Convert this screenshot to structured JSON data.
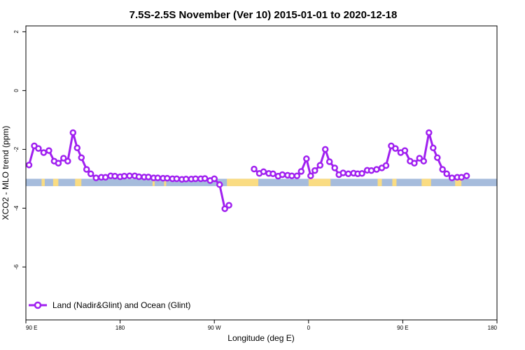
{
  "chart_data": {
    "type": "line",
    "title": "7.5S-2.5S November (Ver 10)   2015-01-01 to 2020-12-18",
    "xlabel": "Longitude (deg E)",
    "ylabel": "XCO2 - MLO trend (ppm)",
    "x_ticks": [
      {
        "value": 90,
        "label": "90 E"
      },
      {
        "value": 180,
        "label": "180"
      },
      {
        "value": 270,
        "label": "90 W"
      },
      {
        "value": 360,
        "label": "0"
      },
      {
        "value": 450,
        "label": "90 E"
      },
      {
        "value": 540,
        "label": "180"
      }
    ],
    "y_ticks": [
      {
        "value": 2,
        "label": "2"
      },
      {
        "value": 0,
        "label": "0"
      },
      {
        "value": -2,
        "label": "-2"
      },
      {
        "value": -4,
        "label": "-4"
      },
      {
        "value": -6,
        "label": "-6"
      }
    ],
    "xlim": [
      90,
      540
    ],
    "ylim": [
      -7.8,
      2.2
    ],
    "legend": {
      "position": "bottom-left",
      "label": "Land (Nadir&Glint) and Ocean (Glint)"
    },
    "series_color": "#a020f0",
    "land_color": "#fadc82",
    "ocean_color": "#a6bcdc",
    "surface_band": {
      "y_top": -3.0,
      "y_bottom": -3.25
    },
    "land_segments": [
      [
        105,
        108
      ],
      [
        116,
        121
      ],
      [
        137,
        143
      ],
      [
        211,
        213
      ],
      [
        222,
        224
      ],
      [
        282,
        312
      ],
      [
        360,
        381
      ],
      [
        426,
        430
      ],
      [
        440,
        444
      ],
      [
        468,
        477
      ],
      [
        500,
        506
      ]
    ],
    "series": [
      {
        "name": "Land (Nadir&Glint) and Ocean (Glint)",
        "points": [
          [
            93,
            -2.53
          ],
          [
            98,
            -1.88
          ],
          [
            102,
            -1.97
          ],
          [
            107,
            -2.11
          ],
          [
            112,
            -2.04
          ],
          [
            117,
            -2.4
          ],
          [
            121,
            -2.47
          ],
          [
            126,
            -2.3
          ],
          [
            130,
            -2.4
          ],
          [
            135,
            -1.43
          ],
          [
            139,
            -1.95
          ],
          [
            143,
            -2.28
          ],
          [
            148,
            -2.68
          ],
          [
            152,
            -2.83
          ],
          [
            157,
            -2.97
          ],
          [
            162,
            -2.95
          ],
          [
            166,
            -2.95
          ],
          [
            171,
            -2.9
          ],
          [
            175,
            -2.91
          ],
          [
            180,
            -2.93
          ],
          [
            184,
            -2.91
          ],
          [
            189,
            -2.9
          ],
          [
            194,
            -2.9
          ],
          [
            198,
            -2.93
          ],
          [
            203,
            -2.94
          ],
          [
            207,
            -2.94
          ],
          [
            212,
            -2.97
          ],
          [
            216,
            -2.97
          ],
          [
            221,
            -2.98
          ],
          [
            225,
            -2.98
          ],
          [
            230,
            -3.0
          ],
          [
            234,
            -3.0
          ],
          [
            239,
            -3.02
          ],
          [
            243,
            -3.01
          ],
          [
            248,
            -3.01
          ],
          [
            252,
            -3.0
          ],
          [
            257,
            -3.0
          ],
          [
            261,
            -2.99
          ],
          [
            266,
            -3.06
          ],
          [
            270,
            -3.0
          ],
          [
            275,
            -3.2
          ],
          [
            280,
            -4.02
          ],
          [
            284,
            -3.9
          ],
          [
            308,
            -2.67
          ],
          [
            313,
            -2.82
          ],
          [
            317,
            -2.76
          ],
          [
            322,
            -2.82
          ],
          [
            326,
            -2.83
          ],
          [
            331,
            -2.91
          ],
          [
            335,
            -2.86
          ],
          [
            340,
            -2.88
          ],
          [
            344,
            -2.9
          ],
          [
            349,
            -2.9
          ],
          [
            353,
            -2.75
          ],
          [
            358,
            -2.32
          ],
          [
            362,
            -2.9
          ],
          [
            366,
            -2.72
          ],
          [
            371,
            -2.54
          ],
          [
            376,
            -2.0
          ],
          [
            380,
            -2.42
          ],
          [
            385,
            -2.63
          ],
          [
            389,
            -2.86
          ],
          [
            393,
            -2.8
          ],
          [
            398,
            -2.83
          ],
          [
            403,
            -2.81
          ],
          [
            407,
            -2.83
          ],
          [
            411,
            -2.82
          ],
          [
            416,
            -2.71
          ],
          [
            420,
            -2.72
          ],
          [
            425,
            -2.68
          ],
          [
            430,
            -2.63
          ],
          [
            434,
            -2.55
          ],
          [
            439,
            -1.88
          ],
          [
            443,
            -1.97
          ],
          [
            448,
            -2.11
          ],
          [
            452,
            -2.04
          ],
          [
            457,
            -2.4
          ],
          [
            461,
            -2.47
          ],
          [
            466,
            -2.3
          ],
          [
            470,
            -2.4
          ],
          [
            475,
            -1.43
          ],
          [
            479,
            -1.95
          ],
          [
            483,
            -2.28
          ],
          [
            488,
            -2.68
          ],
          [
            492,
            -2.83
          ],
          [
            497,
            -2.97
          ],
          [
            502,
            -2.95
          ],
          [
            506,
            -2.95
          ],
          [
            511,
            -2.9
          ]
        ]
      }
    ]
  }
}
